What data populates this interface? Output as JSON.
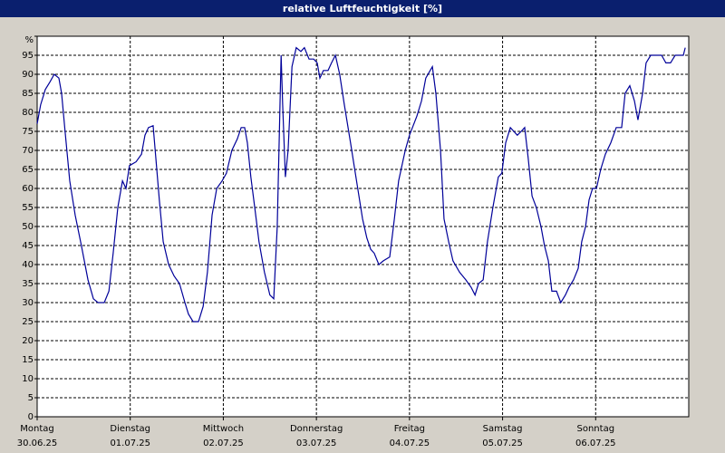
{
  "chart_data": {
    "type": "line",
    "title": "relative Luftfeuchtigkeit [%]",
    "color": "#000099",
    "grid": true,
    "x": [
      0,
      0.9,
      2.1,
      3.3,
      4.4,
      5.6,
      6.3,
      7.2,
      8.4,
      9.8,
      11.4,
      13.1,
      14.5,
      15.7,
      17.3,
      18.5,
      19.6,
      20.8,
      22.0,
      22.9,
      23.8,
      25.5,
      26.9,
      27.8,
      28.7,
      29.9,
      30.6,
      31.5,
      32.5,
      33.9,
      35.3,
      36.7,
      38.1,
      39.0,
      40.2,
      41.6,
      42.8,
      43.9,
      45.1,
      46.3,
      47.7,
      48.8,
      50.2,
      51.6,
      52.6,
      53.5,
      54.2,
      55.1,
      56.1,
      57.2,
      58.6,
      60.0,
      61.0,
      61.9,
      62.9,
      63.3,
      64.0,
      64.7,
      65.7,
      66.8,
      68.0,
      68.9,
      70.1,
      71.3,
      72.2,
      72.9,
      73.8,
      75.0,
      75.9,
      76.9,
      78.0,
      79.2,
      80.8,
      82.5,
      83.9,
      85.0,
      86.0,
      86.9,
      88.1,
      89.3,
      90.9,
      92.1,
      93.2,
      94.9,
      96.0,
      97.9,
      99.1,
      100.2,
      101.9,
      102.8,
      104.0,
      104.9,
      106.1,
      107.2,
      108.9,
      110.5,
      111.9,
      112.9,
      113.8,
      115.0,
      116.1,
      117.5,
      118.9,
      119.8,
      120.8,
      122.0,
      122.9,
      123.8,
      124.8,
      125.7,
      126.6,
      127.6,
      128.7,
      129.9,
      130.8,
      131.8,
      132.7,
      133.9,
      135.0,
      136.2,
      137.1,
      138.3,
      139.5,
      140.4,
      141.4,
      142.3,
      143.2,
      144.2,
      145.3,
      146.5,
      147.9,
      149.3,
      150.7,
      151.6,
      152.8,
      154.0,
      154.9,
      156.1,
      157.0,
      158.2,
      159.3,
      161.0,
      162.1,
      163.3,
      164.5,
      165.7,
      166.6,
      167.1
    ],
    "values": [
      77,
      82,
      86,
      88,
      90,
      89,
      85,
      75,
      62,
      53,
      45,
      36,
      31,
      30,
      30,
      33,
      43,
      55,
      62,
      60,
      66,
      67,
      69,
      74,
      76,
      76.5,
      68,
      57,
      46,
      40,
      37,
      35,
      30,
      27,
      25,
      25,
      29,
      38,
      53,
      60,
      62,
      64,
      70,
      73,
      76,
      76,
      72,
      63,
      55,
      46,
      38,
      32,
      31,
      50,
      95,
      82,
      63,
      70,
      92,
      97,
      96,
      97,
      94,
      94,
      93,
      89,
      91,
      91,
      93,
      95,
      90,
      82,
      72,
      61,
      52,
      47,
      44,
      43,
      40,
      41,
      42,
      52,
      62,
      70,
      74,
      79,
      83,
      89,
      92,
      85,
      70,
      52,
      46,
      41,
      38,
      36,
      34,
      32,
      35,
      36,
      46,
      55,
      63,
      64,
      72,
      76,
      75,
      74,
      75,
      76,
      68,
      58,
      55,
      50,
      45,
      41,
      33,
      33,
      30,
      32,
      34,
      36,
      39,
      46,
      50,
      57,
      60,
      60,
      65,
      69,
      72,
      76,
      76,
      85,
      87,
      83,
      78,
      85,
      93,
      95,
      95,
      95,
      93,
      93,
      95,
      95,
      95,
      97
    ],
    "xlim": [
      0,
      168
    ],
    "xticks": [
      {
        "value": 0,
        "label": "Montag",
        "date": "30.06.25"
      },
      {
        "value": 24,
        "label": "Dienstag",
        "date": "01.07.25"
      },
      {
        "value": 48,
        "label": "Mittwoch",
        "date": "02.07.25"
      },
      {
        "value": 72,
        "label": "Donnerstag",
        "date": "03.07.25"
      },
      {
        "value": 96,
        "label": "Freitag",
        "date": "04.07.25"
      },
      {
        "value": 120,
        "label": "Samstag",
        "date": "05.07.25"
      },
      {
        "value": 144,
        "label": "Sonntag",
        "date": "06.07.25"
      }
    ],
    "ylim": [
      0,
      100
    ],
    "yticks": [
      0,
      5,
      10,
      15,
      20,
      25,
      30,
      35,
      40,
      45,
      50,
      55,
      60,
      65,
      70,
      75,
      80,
      85,
      90,
      95,
      {
        "value": 100,
        "label": "%"
      }
    ]
  }
}
